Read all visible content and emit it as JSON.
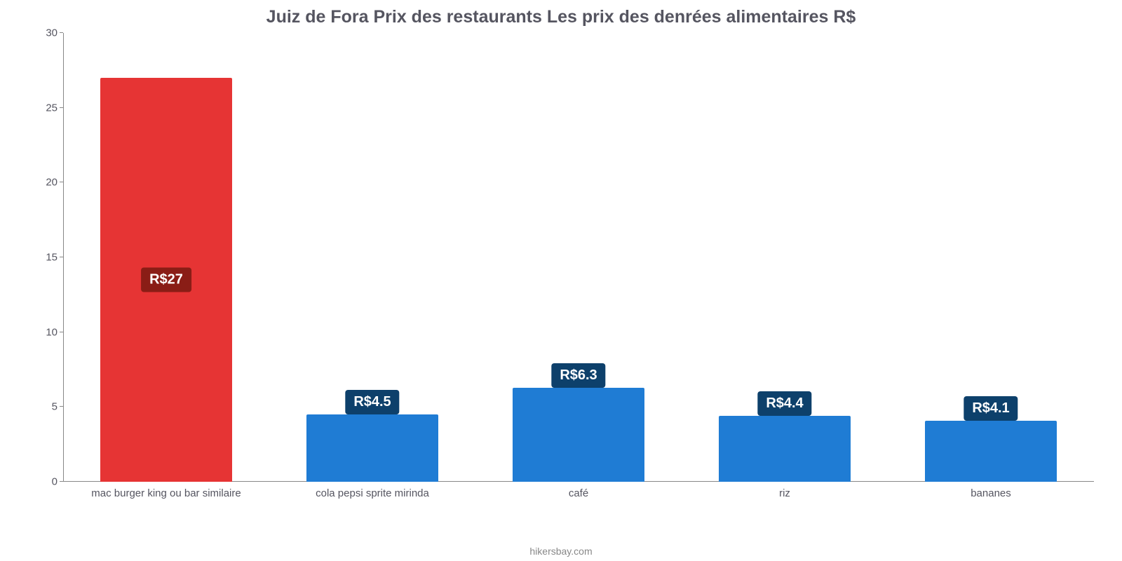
{
  "chart": {
    "type": "bar",
    "title": "Juiz de Fora Prix des restaurants Les prix des denrées alimentaires R$",
    "title_fontsize": 25,
    "title_color": "#555560",
    "background_color": "#ffffff",
    "axis_color": "#888888",
    "tick_label_color": "#555560",
    "tick_label_fontsize": 15,
    "x_label_fontsize": 15,
    "ylim": [
      0,
      30
    ],
    "yticks": [
      0,
      5,
      10,
      15,
      20,
      25,
      30
    ],
    "bar_width_pct": 64,
    "value_prefix": "R$",
    "value_label_fontsize": 20,
    "value_label_text_color": "#ffffff",
    "attribution": "hikersbay.com",
    "attribution_color": "#888888",
    "attribution_fontsize": 14,
    "categories": [
      {
        "label": "mac burger king ou bar similaire",
        "value": 27,
        "display": "R$27",
        "color": "#e63434",
        "label_bg": "#8a1d16",
        "label_pos": "center"
      },
      {
        "label": "cola pepsi sprite mirinda",
        "value": 4.5,
        "display": "R$4.5",
        "color": "#1f7cd4",
        "label_bg": "#0d406b",
        "label_pos": "above"
      },
      {
        "label": "café",
        "value": 6.3,
        "display": "R$6.3",
        "color": "#1f7cd4",
        "label_bg": "#0d406b",
        "label_pos": "above"
      },
      {
        "label": "riz",
        "value": 4.4,
        "display": "R$4.4",
        "color": "#1f7cd4",
        "label_bg": "#0d406b",
        "label_pos": "above"
      },
      {
        "label": "bananes",
        "value": 4.1,
        "display": "R$4.1",
        "color": "#1f7cd4",
        "label_bg": "#0d406b",
        "label_pos": "above"
      }
    ]
  }
}
